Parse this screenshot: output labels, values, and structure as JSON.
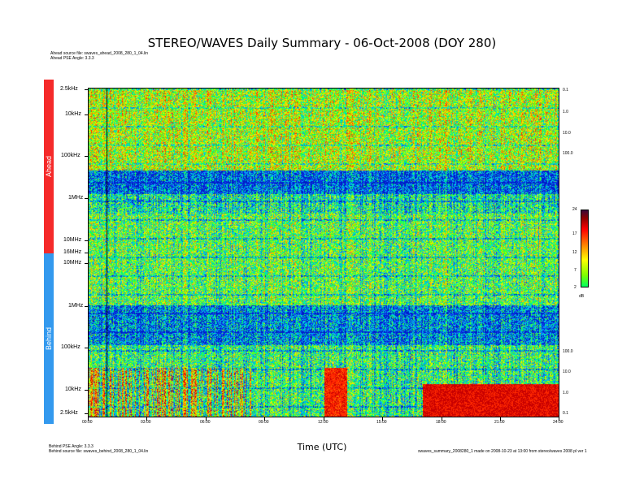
{
  "title": "STEREO/WAVES Daily Summary - 06-Oct-2008 (DOY 280)",
  "header_info": {
    "ahead_source_file": "Ahead source file: swaves_ahead_2008_280_1_04.lin",
    "ahead_pse_angle": "Ahead PSE Angle: 3.3.3"
  },
  "footer_info": {
    "behind_pse_angle": "Behind PSE Angle: 3.3.3",
    "behind_source_file": "Behind source file: swaves_behind_2008_280_1_04.lin",
    "generator_note": "swaves_summary_2008280_1 made on 2008-10-23 at 13:00 from stereo/waves 2008 pl ver 1"
  },
  "spacecraft_labels": {
    "ahead": "Ahead",
    "behind": "Behind"
  },
  "colors": {
    "ahead_bar": "#f52a2a",
    "behind_bar": "#3399ee"
  },
  "chart_data": {
    "type": "heatmap",
    "title": "STEREO/WAVES Daily Summary - 06-Oct-2008 (DOY 280)",
    "xlabel": "Time (UTC)",
    "x_ticks": [
      "00:00",
      "03:00",
      "06:00",
      "09:00",
      "12:00",
      "15:00",
      "18:00",
      "21:00",
      "24:00"
    ],
    "xlim_hours": [
      0,
      24
    ],
    "y_ticks_left": [
      "2.5kHz",
      "10kHz",
      "100kHz",
      "1MHz",
      "10MHz",
      "16MHz",
      "10MHz",
      "1MHz",
      "100kHz",
      "10kHz",
      "2.5kHz"
    ],
    "y_ticks_right_ahead": [
      "0.1",
      "1.0",
      "10.0",
      "100.0"
    ],
    "y_ticks_right_behind": [
      "100.0",
      "10.0",
      "1.0",
      "0.1"
    ],
    "panels": [
      {
        "name": "Ahead",
        "freq_range": [
          "2.5kHz",
          "16MHz"
        ],
        "axis_direction": "frequency increases downward"
      },
      {
        "name": "Behind",
        "freq_range": [
          "16MHz",
          "2.5kHz"
        ],
        "axis_direction": "frequency decreases downward"
      }
    ],
    "colorbar": {
      "unit": "dB",
      "ticks": [
        "2",
        "7",
        "12",
        "17",
        "24"
      ],
      "range": [
        2,
        24
      ],
      "colors": [
        "#00ff60",
        "#7fff00",
        "#ffff00",
        "#ff8000",
        "#ff0000",
        "#8b0000",
        "#3a0a3a"
      ]
    },
    "features": [
      {
        "panel": "Behind",
        "band": "low frequencies (2.5kHz-100kHz)",
        "time_start": "17:00",
        "time_end": "24:00",
        "intensity": "high (red/orange)"
      },
      {
        "panel": "Behind",
        "band": "low frequencies",
        "time_start": "12:00",
        "time_end": "13:00",
        "intensity": "high (red/orange)"
      },
      {
        "panel": "Ahead",
        "band": "around 1MHz",
        "time_start": "00:00",
        "time_end": "24:00",
        "intensity": "low (blue background)"
      }
    ]
  }
}
